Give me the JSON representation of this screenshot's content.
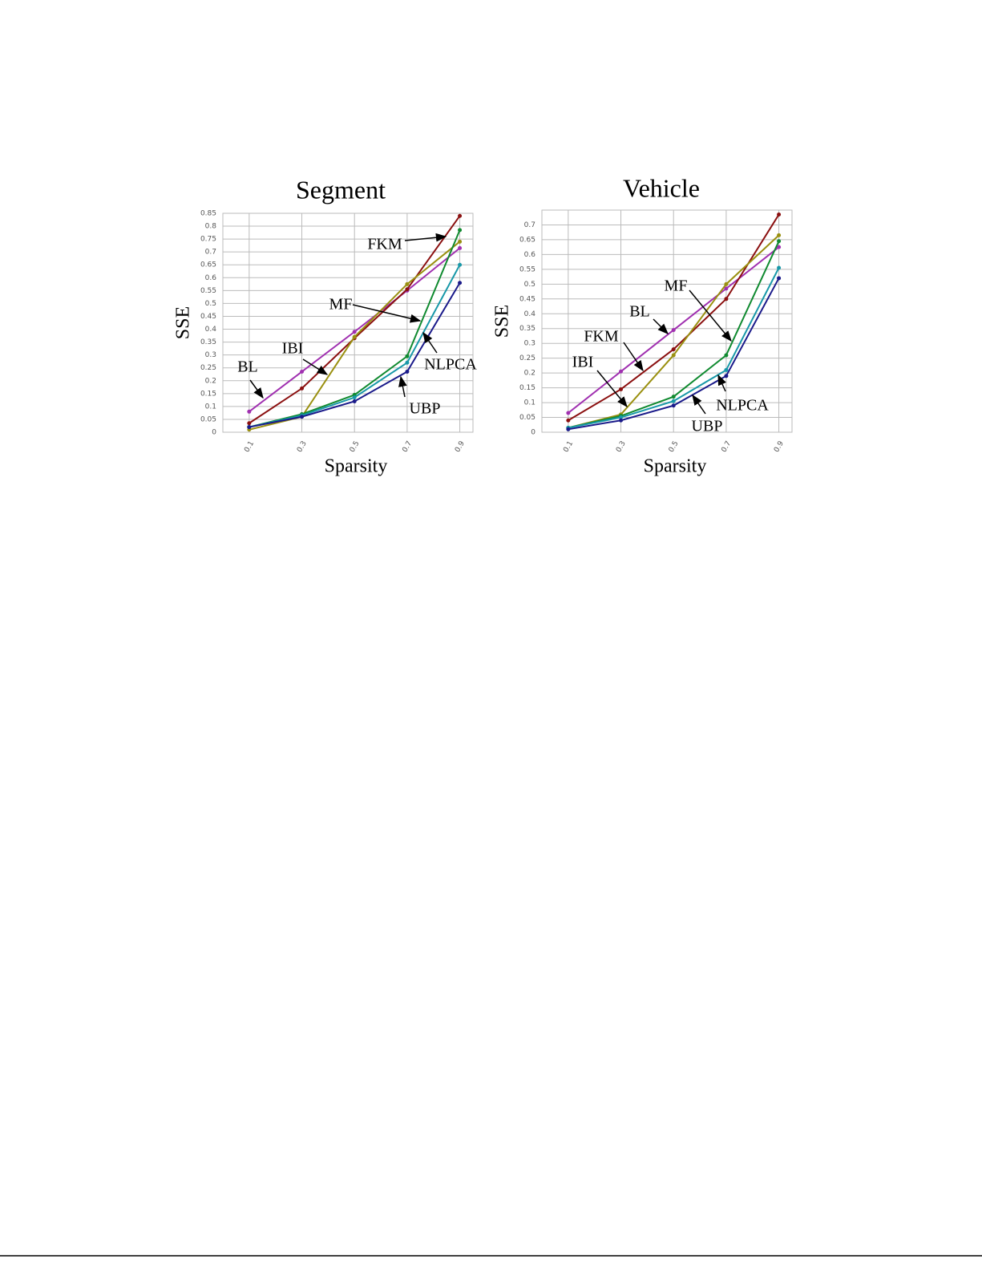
{
  "chart_data": [
    {
      "type": "line",
      "title": "Segment",
      "x_label": "Sparsity",
      "y_label": "SSE",
      "x": [
        0.1,
        0.3,
        0.5,
        0.7,
        0.9
      ],
      "xlim": [
        0,
        0.95
      ],
      "xticks": [
        0.1,
        0.3,
        0.5,
        0.7,
        0.9
      ],
      "ylim": [
        0,
        0.85
      ],
      "yticks": [
        0,
        0.05,
        0.1,
        0.15,
        0.2,
        0.25,
        0.3,
        0.35,
        0.4,
        0.45,
        0.5,
        0.55,
        0.6,
        0.65,
        0.7,
        0.75,
        0.8,
        0.85
      ],
      "grid": true,
      "series": [
        {
          "name": "BL",
          "color": "#a030b0",
          "values": [
            0.08,
            0.235,
            0.39,
            0.55,
            0.715
          ]
        },
        {
          "name": "FKM",
          "color": "#8b1010",
          "values": [
            0.035,
            0.17,
            0.365,
            0.555,
            0.84
          ]
        },
        {
          "name": "IBI",
          "color": "#9a9010",
          "values": [
            0.01,
            0.06,
            0.37,
            0.575,
            0.74
          ]
        },
        {
          "name": "MF",
          "color": "#108a30",
          "values": [
            0.02,
            0.07,
            0.145,
            0.295,
            0.785
          ]
        },
        {
          "name": "NLPCA",
          "color": "#1898a8",
          "values": [
            0.02,
            0.065,
            0.135,
            0.27,
            0.65
          ]
        },
        {
          "name": "UBP",
          "color": "#1a1a8a",
          "values": [
            0.02,
            0.06,
            0.12,
            0.235,
            0.58
          ]
        }
      ]
    },
    {
      "type": "line",
      "title": "Vehicle",
      "x_label": "Sparsity",
      "y_label": "SSE",
      "x": [
        0.1,
        0.3,
        0.5,
        0.7,
        0.9
      ],
      "xlim": [
        0,
        0.95
      ],
      "xticks": [
        0.1,
        0.3,
        0.5,
        0.7,
        0.9
      ],
      "ylim": [
        0,
        0.75
      ],
      "yticks": [
        0,
        0.05,
        0.1,
        0.15,
        0.2,
        0.25,
        0.3,
        0.35,
        0.4,
        0.45,
        0.5,
        0.55,
        0.6,
        0.65,
        0.7
      ],
      "grid": true,
      "series": [
        {
          "name": "BL",
          "color": "#a030b0",
          "values": [
            0.065,
            0.205,
            0.345,
            0.485,
            0.625
          ]
        },
        {
          "name": "FKM",
          "color": "#8b1010",
          "values": [
            0.04,
            0.145,
            0.28,
            0.45,
            0.735
          ]
        },
        {
          "name": "IBI",
          "color": "#9a9010",
          "values": [
            0.015,
            0.06,
            0.26,
            0.5,
            0.665
          ]
        },
        {
          "name": "MF",
          "color": "#108a30",
          "values": [
            0.015,
            0.055,
            0.12,
            0.26,
            0.645
          ]
        },
        {
          "name": "NLPCA",
          "color": "#1898a8",
          "values": [
            0.015,
            0.05,
            0.105,
            0.21,
            0.555
          ]
        },
        {
          "name": "UBP",
          "color": "#1a1a8a",
          "values": [
            0.01,
            0.04,
            0.09,
            0.19,
            0.52
          ]
        }
      ]
    }
  ]
}
